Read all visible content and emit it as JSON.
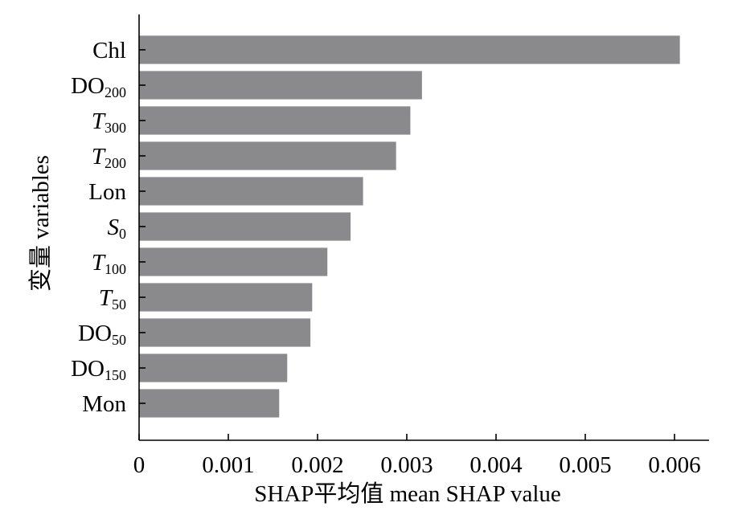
{
  "chart_data": {
    "type": "bar",
    "orientation": "horizontal",
    "categories": [
      {
        "base": "Chl",
        "sub": "",
        "italic": false
      },
      {
        "base": "DO",
        "sub": "200",
        "italic": false
      },
      {
        "base": "T",
        "sub": "300",
        "italic": true
      },
      {
        "base": "T",
        "sub": "200",
        "italic": true
      },
      {
        "base": "Lon",
        "sub": "",
        "italic": false
      },
      {
        "base": "S",
        "sub": "0",
        "italic": true
      },
      {
        "base": "T",
        "sub": "100",
        "italic": true
      },
      {
        "base": "T",
        "sub": "50",
        "italic": true
      },
      {
        "base": "DO",
        "sub": "50",
        "italic": false
      },
      {
        "base": "DO",
        "sub": "150",
        "italic": false
      },
      {
        "base": "Mon",
        "sub": "",
        "italic": false
      }
    ],
    "values": [
      0.00606,
      0.00317,
      0.00304,
      0.00288,
      0.00251,
      0.00237,
      0.00211,
      0.00194,
      0.00192,
      0.00166,
      0.00157
    ],
    "xlim": [
      0,
      0.0064
    ],
    "xticks": [
      "0",
      "0.001",
      "0.002",
      "0.003",
      "0.004",
      "0.005",
      "0.006"
    ],
    "xlabel": "SHAP平均值 mean SHAP value",
    "ylabel": "变量 variables",
    "bar_color": "#8a898c",
    "grid": false,
    "legend": "none"
  }
}
